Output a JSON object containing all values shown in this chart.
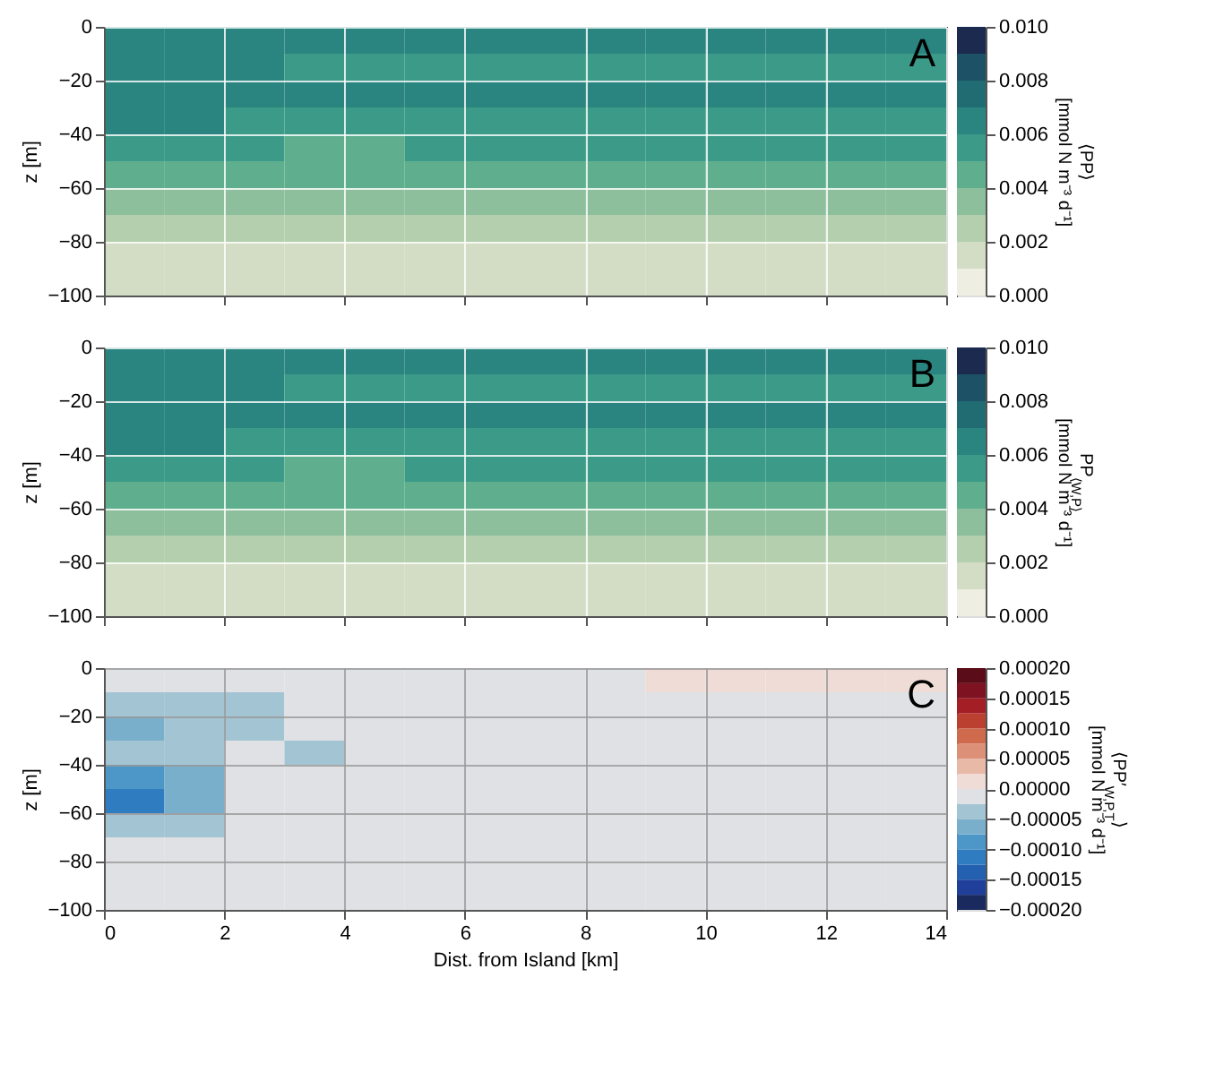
{
  "chart_data": [
    {
      "type": "heatmap",
      "ylabel": "z [m]",
      "clabel": "⟨PP⟩ [mmol N m⁻³ d⁻¹]",
      "annotations": [
        "A"
      ],
      "xlim": [
        0,
        14
      ],
      "ylim": [
        -100,
        0
      ],
      "xticks": [
        0,
        2,
        4,
        6,
        8,
        10,
        12,
        14
      ],
      "yticks": [
        -100,
        -80,
        -60,
        -40,
        -20,
        0
      ],
      "grid": true,
      "tick_labels": "y",
      "clim": [
        0,
        0.01
      ],
      "cticks": [
        {
          "value": 0,
          "label": "0.000"
        },
        {
          "value": 0.002,
          "label": "0.002"
        },
        {
          "value": 0.004,
          "label": "0.004"
        },
        {
          "value": 0.006,
          "label": "0.006"
        },
        {
          "value": 0.008,
          "label": "0.008"
        },
        {
          "value": 0.01,
          "label": "0.010"
        }
      ],
      "colors": [
        "#efeee2",
        "#d3dcc4",
        "#b3cfad",
        "#8dbf9c",
        "#5faf8f",
        "#3b9b88",
        "#2a8580",
        "#216c73",
        "#1d5266",
        "#1b2a4e"
      ],
      "cells": [
        [
          0.0065,
          0.0065,
          0.0065,
          0.0065,
          0.0065,
          0.0065,
          0.0065,
          0.0065,
          0.0065,
          0.0065,
          0.0065,
          0.0065,
          0.0065,
          0.0065
        ],
        [
          0.0065,
          0.0065,
          0.0065,
          0.0055,
          0.0055,
          0.0055,
          0.0055,
          0.0055,
          0.0055,
          0.0055,
          0.0055,
          0.0055,
          0.0055,
          0.0055
        ],
        [
          0.0065,
          0.0065,
          0.0065,
          0.0065,
          0.0065,
          0.0065,
          0.0065,
          0.0065,
          0.0065,
          0.0065,
          0.0065,
          0.0065,
          0.0065,
          0.0065
        ],
        [
          0.0065,
          0.0065,
          0.0055,
          0.0055,
          0.0055,
          0.0055,
          0.0055,
          0.0055,
          0.0055,
          0.0055,
          0.0055,
          0.0055,
          0.0055,
          0.0055
        ],
        [
          0.0055,
          0.0055,
          0.0055,
          0.0045,
          0.0045,
          0.0055,
          0.0055,
          0.0055,
          0.0055,
          0.0055,
          0.0055,
          0.0055,
          0.0055,
          0.0055
        ],
        [
          0.0045,
          0.0045,
          0.0045,
          0.0045,
          0.0045,
          0.0045,
          0.0045,
          0.0045,
          0.0045,
          0.0045,
          0.0045,
          0.0045,
          0.0045,
          0.0045
        ],
        [
          0.0035,
          0.0035,
          0.0035,
          0.0035,
          0.0035,
          0.0035,
          0.0035,
          0.0035,
          0.0035,
          0.0035,
          0.0035,
          0.0035,
          0.0035,
          0.0035
        ],
        [
          0.0025,
          0.0025,
          0.0025,
          0.0025,
          0.0025,
          0.0025,
          0.0025,
          0.0025,
          0.0025,
          0.0025,
          0.0025,
          0.0025,
          0.0025,
          0.0025
        ],
        [
          0.0015,
          0.0015,
          0.0015,
          0.0015,
          0.0015,
          0.0015,
          0.0015,
          0.0015,
          0.0015,
          0.0015,
          0.0015,
          0.0015,
          0.0015,
          0.0015
        ],
        [
          0.0015,
          0.0015,
          0.0015,
          0.0015,
          0.0015,
          0.0015,
          0.0015,
          0.0015,
          0.0015,
          0.0015,
          0.0015,
          0.0015,
          0.0015,
          0.0015
        ]
      ]
    },
    {
      "type": "heatmap",
      "ylabel": "z [m]",
      "clabel": "PP$_{⟨W,P⟩}$ [mmol N m⁻³ d⁻¹]",
      "annotations": [
        "B"
      ],
      "xlim": [
        0,
        14
      ],
      "ylim": [
        -100,
        0
      ],
      "xticks": [
        0,
        2,
        4,
        6,
        8,
        10,
        12,
        14
      ],
      "yticks": [
        -100,
        -80,
        -60,
        -40,
        -20,
        0
      ],
      "grid": true,
      "tick_labels": "y",
      "clim": [
        0,
        0.01
      ],
      "cticks": [
        {
          "value": 0,
          "label": "0.000"
        },
        {
          "value": 0.002,
          "label": "0.002"
        },
        {
          "value": 0.004,
          "label": "0.004"
        },
        {
          "value": 0.006,
          "label": "0.006"
        },
        {
          "value": 0.008,
          "label": "0.008"
        },
        {
          "value": 0.01,
          "label": "0.010"
        }
      ],
      "colors": [
        "#efeee2",
        "#d3dcc4",
        "#b3cfad",
        "#8dbf9c",
        "#5faf8f",
        "#3b9b88",
        "#2a8580",
        "#216c73",
        "#1d5266",
        "#1b2a4e"
      ],
      "cells": [
        [
          0.0065,
          0.0065,
          0.0065,
          0.0065,
          0.0065,
          0.0065,
          0.0065,
          0.0065,
          0.0065,
          0.0065,
          0.0065,
          0.0065,
          0.0065,
          0.0065
        ],
        [
          0.0065,
          0.0065,
          0.0065,
          0.0055,
          0.0055,
          0.0055,
          0.0055,
          0.0055,
          0.0055,
          0.0055,
          0.0055,
          0.0055,
          0.0055,
          0.0055
        ],
        [
          0.0065,
          0.0065,
          0.0065,
          0.0065,
          0.0065,
          0.0065,
          0.0065,
          0.0065,
          0.0065,
          0.0065,
          0.0065,
          0.0065,
          0.0065,
          0.0065
        ],
        [
          0.0065,
          0.0065,
          0.0055,
          0.0055,
          0.0055,
          0.0055,
          0.0055,
          0.0055,
          0.0055,
          0.0055,
          0.0055,
          0.0055,
          0.0055,
          0.0055
        ],
        [
          0.0055,
          0.0055,
          0.0055,
          0.0045,
          0.0045,
          0.0055,
          0.0055,
          0.0055,
          0.0055,
          0.0055,
          0.0055,
          0.0055,
          0.0055,
          0.0055
        ],
        [
          0.0045,
          0.0045,
          0.0045,
          0.0045,
          0.0045,
          0.0045,
          0.0045,
          0.0045,
          0.0045,
          0.0045,
          0.0045,
          0.0045,
          0.0045,
          0.0045
        ],
        [
          0.0035,
          0.0035,
          0.0035,
          0.0035,
          0.0035,
          0.0035,
          0.0035,
          0.0035,
          0.0035,
          0.0035,
          0.0035,
          0.0035,
          0.0035,
          0.0035
        ],
        [
          0.0025,
          0.0025,
          0.0025,
          0.0025,
          0.0025,
          0.0025,
          0.0025,
          0.0025,
          0.0025,
          0.0025,
          0.0025,
          0.0025,
          0.0025,
          0.0025
        ],
        [
          0.0015,
          0.0015,
          0.0015,
          0.0015,
          0.0015,
          0.0015,
          0.0015,
          0.0015,
          0.0015,
          0.0015,
          0.0015,
          0.0015,
          0.0015,
          0.0015
        ],
        [
          0.0015,
          0.0015,
          0.0015,
          0.0015,
          0.0015,
          0.0015,
          0.0015,
          0.0015,
          0.0015,
          0.0015,
          0.0015,
          0.0015,
          0.0015,
          0.0015
        ]
      ]
    },
    {
      "type": "heatmap",
      "xlabel": "Dist. from Island [km]",
      "ylabel": "z [m]",
      "clabel": "⟨PP′$_{W,P,T}$⟩ [mmol N m⁻³ d⁻¹]",
      "annotations": [
        "C"
      ],
      "xlim": [
        0,
        14
      ],
      "ylim": [
        -100,
        0
      ],
      "xticks": [
        0,
        2,
        4,
        6,
        8,
        10,
        12,
        14
      ],
      "yticks": [
        -100,
        -80,
        -60,
        -40,
        -20,
        0
      ],
      "grid": true,
      "clim": [
        -0.0002,
        0.0002
      ],
      "cticks": [
        {
          "value": -0.0002,
          "label": "−0.00020"
        },
        {
          "value": -0.00015,
          "label": "−0.00015"
        },
        {
          "value": -0.0001,
          "label": "−0.00010"
        },
        {
          "value": -5e-05,
          "label": "−0.00005"
        },
        {
          "value": 0,
          "label": "0.00000"
        },
        {
          "value": 5e-05,
          "label": "0.00005"
        },
        {
          "value": 0.0001,
          "label": "0.00010"
        },
        {
          "value": 0.00015,
          "label": "0.00015"
        },
        {
          "value": 0.0002,
          "label": "0.00020"
        }
      ],
      "colors": [
        "#1a2a5e",
        "#1f3f9a",
        "#2460b0",
        "#2f7cc0",
        "#4d96c8",
        "#7aafcc",
        "#a3c4d3",
        "#dfe1e5",
        "#f0dcd6",
        "#e9b9a8",
        "#dc9078",
        "#cf6a4d",
        "#bc4030",
        "#a41e25",
        "#7f1220",
        "#5a0c18"
      ],
      "cells": [
        [
          -1e-05,
          -1e-05,
          -1e-05,
          -1e-05,
          -1e-05,
          -1e-05,
          -1e-05,
          -1e-05,
          -1e-05,
          1e-05,
          1e-05,
          1e-05,
          1e-05,
          1e-05
        ],
        [
          -4e-05,
          -4e-05,
          -4e-05,
          -1e-05,
          -1e-05,
          -1e-05,
          -1e-05,
          -1e-05,
          -1e-05,
          -1e-05,
          -1e-05,
          -1e-05,
          -1e-05,
          -1e-05
        ],
        [
          -6e-05,
          -4e-05,
          -4e-05,
          -1e-05,
          -1e-05,
          -1e-05,
          -1e-05,
          -1e-05,
          -1e-05,
          -1e-05,
          -1e-05,
          -1e-05,
          -1e-05,
          -1e-05
        ],
        [
          -4e-05,
          -4e-05,
          -1e-05,
          -4e-05,
          -1e-05,
          -1e-05,
          -1e-05,
          -1e-05,
          -1e-05,
          -1e-05,
          -1e-05,
          -1e-05,
          -1e-05,
          -1e-05
        ],
        [
          -8e-05,
          -6e-05,
          -1e-05,
          -1e-05,
          -1e-05,
          -1e-05,
          -1e-05,
          -1e-05,
          -1e-05,
          -1e-05,
          -1e-05,
          -1e-05,
          -1e-05,
          -1e-05
        ],
        [
          -0.00012,
          -6e-05,
          -1e-05,
          -1e-05,
          -1e-05,
          -1e-05,
          -1e-05,
          -1e-05,
          -1e-05,
          -1e-05,
          -1e-05,
          -1e-05,
          -1e-05,
          -1e-05
        ],
        [
          -4e-05,
          -4e-05,
          -1e-05,
          -1e-05,
          -1e-05,
          -1e-05,
          -1e-05,
          -1e-05,
          -1e-05,
          -1e-05,
          -1e-05,
          -1e-05,
          -1e-05,
          -1e-05
        ],
        [
          -1e-05,
          -1e-05,
          -1e-05,
          -1e-05,
          -1e-05,
          -1e-05,
          -1e-05,
          -1e-05,
          -1e-05,
          -1e-05,
          -1e-05,
          -1e-05,
          -1e-05,
          -1e-05
        ],
        [
          -1e-05,
          -1e-05,
          -1e-05,
          -1e-05,
          -1e-05,
          -1e-05,
          -1e-05,
          -1e-05,
          -1e-05,
          -1e-05,
          -1e-05,
          -1e-05,
          -1e-05,
          -1e-05
        ],
        [
          -1e-05,
          -1e-05,
          -1e-05,
          -1e-05,
          -1e-05,
          -1e-05,
          -1e-05,
          -1e-05,
          -1e-05,
          -1e-05,
          -1e-05,
          -1e-05,
          -1e-05,
          -1e-05
        ]
      ]
    }
  ]
}
